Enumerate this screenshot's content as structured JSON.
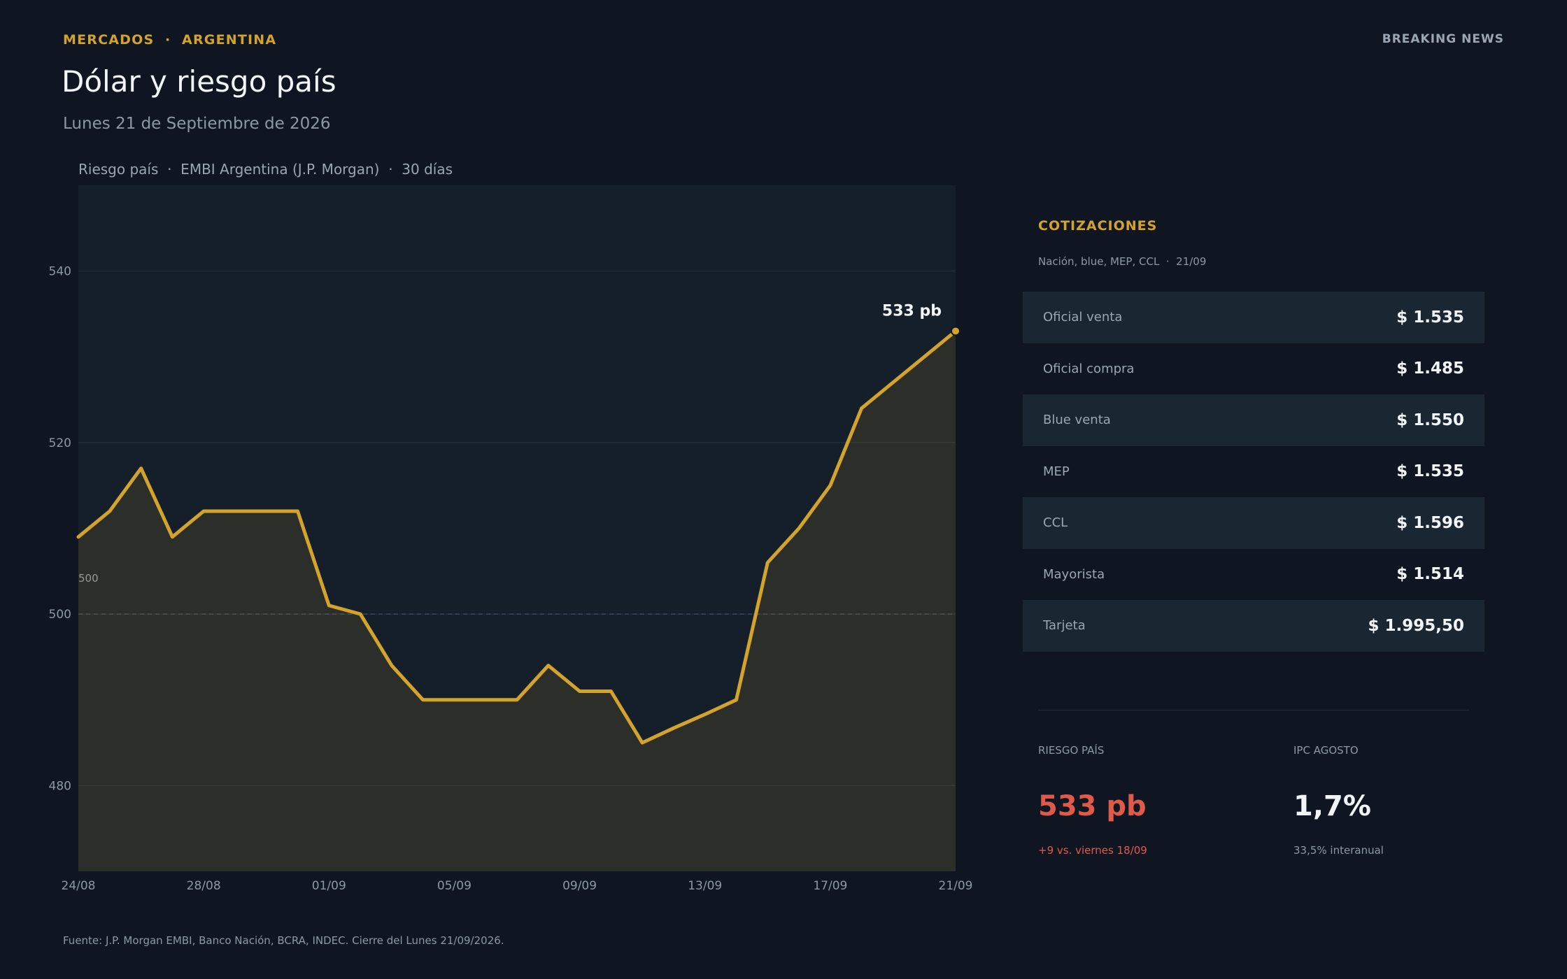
{
  "header": {
    "kicker": "MERCADOS  ·  ARGENTINA",
    "breaking": "BREAKING NEWS",
    "title": "Dólar y riesgo país",
    "subtitle": "Lunes 21 de Septiembre de 2026"
  },
  "chart_caption": "Riesgo país  ·  EMBI Argentina (J.P. Morgan)  ·  30 días",
  "colors": {
    "accent": "#d4a32c",
    "negative": "#e05a4a",
    "background": "#0f1621",
    "plot_background": "#151f2a"
  },
  "chart_data": {
    "type": "area",
    "title": "Riesgo país  ·  EMBI Argentina (J.P. Morgan)  ·  30 días",
    "x": [
      "24/08",
      "25/08",
      "26/08",
      "27/08",
      "28/08",
      "29/08",
      "30/08",
      "31/08",
      "01/09",
      "02/09",
      "03/09",
      "04/09",
      "05/09",
      "06/09",
      "07/09",
      "08/09",
      "09/09",
      "10/09",
      "11/09",
      "12/09",
      "13/09",
      "14/09",
      "15/09",
      "16/09",
      "17/09",
      "18/09",
      "19/09",
      "20/09",
      "21/09"
    ],
    "values": [
      509,
      512,
      517,
      509,
      512,
      512,
      512,
      512,
      501,
      500,
      494,
      490,
      490,
      490,
      490,
      494,
      491,
      491,
      485,
      486.7,
      488.3,
      490,
      506,
      510,
      515,
      524,
      527,
      530,
      533
    ],
    "xtick_labels": [
      "24/08",
      "28/08",
      "01/09",
      "05/09",
      "09/09",
      "13/09",
      "17/09",
      "21/09"
    ],
    "ytick_labels": [
      "480",
      "500",
      "520",
      "540"
    ],
    "ylim": [
      470,
      550
    ],
    "reference_line": {
      "value": 500,
      "label": "500"
    },
    "end_label": "533 pb",
    "grid": true,
    "legend": "none"
  },
  "rates": {
    "title": "COTIZACIONES",
    "subtitle": "Nación, blue, MEP, CCL  ·  21/09",
    "rows": [
      {
        "label": "Oficial venta",
        "value": "$ 1.535"
      },
      {
        "label": "Oficial compra",
        "value": "$ 1.485"
      },
      {
        "label": "Blue venta",
        "value": "$ 1.550"
      },
      {
        "label": "MEP",
        "value": "$ 1.535"
      },
      {
        "label": "CCL",
        "value": "$ 1.596"
      },
      {
        "label": "Mayorista",
        "value": "$ 1.514"
      },
      {
        "label": "Tarjeta",
        "value": "$ 1.995,50"
      }
    ]
  },
  "stats": {
    "riesgo": {
      "label": "RIESGO PAÍS",
      "value": "533 pb",
      "note": "+9 vs. viernes 18/09"
    },
    "ipc": {
      "label": "IPC AGOSTO",
      "value": "1,7%",
      "note": "33,5% interanual"
    }
  },
  "footer": "Fuente: J.P. Morgan EMBI, Banco Nación, BCRA, INDEC. Cierre del Lunes 21/09/2026."
}
